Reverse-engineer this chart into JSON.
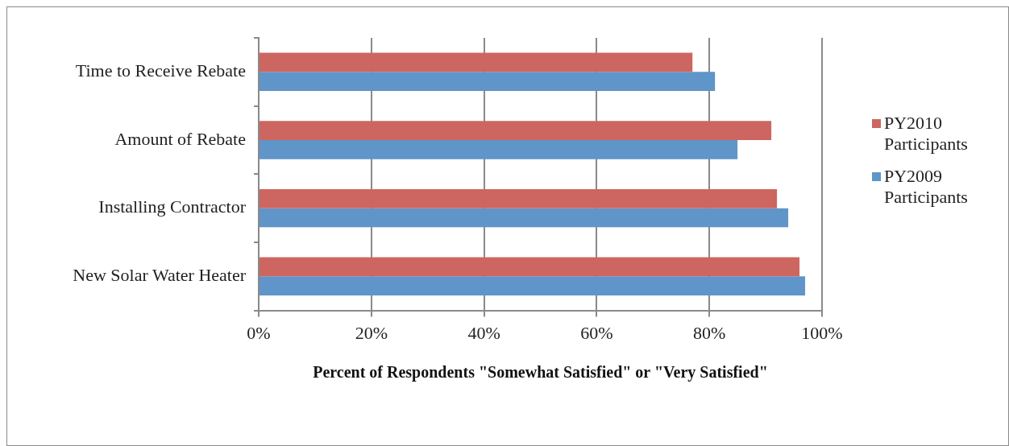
{
  "chart_data": {
    "type": "bar",
    "orientation": "horizontal",
    "xlabel": "Percent of Respondents \"Somewhat Satisfied\" or \"Very Satisfied\"",
    "categories": [
      "Time to Receive Rebate",
      "Amount of Rebate",
      "Installing Contractor",
      "New Solar Water Heater"
    ],
    "series": [
      {
        "name": "PY2010 Participants",
        "color": "#cd6660",
        "values": [
          77,
          91,
          92,
          96
        ]
      },
      {
        "name": "PY2009 Participants",
        "color": "#5f95c8",
        "values": [
          81,
          85,
          94,
          97
        ]
      }
    ],
    "xlim": [
      0,
      100
    ],
    "xticks": [
      {
        "value": 0,
        "label": "0%"
      },
      {
        "value": 20,
        "label": "20%"
      },
      {
        "value": 40,
        "label": "40%"
      },
      {
        "value": 60,
        "label": "60%"
      },
      {
        "value": 80,
        "label": "80%"
      },
      {
        "value": 100,
        "label": "100%"
      }
    ],
    "grid": "x",
    "legend": "right"
  }
}
